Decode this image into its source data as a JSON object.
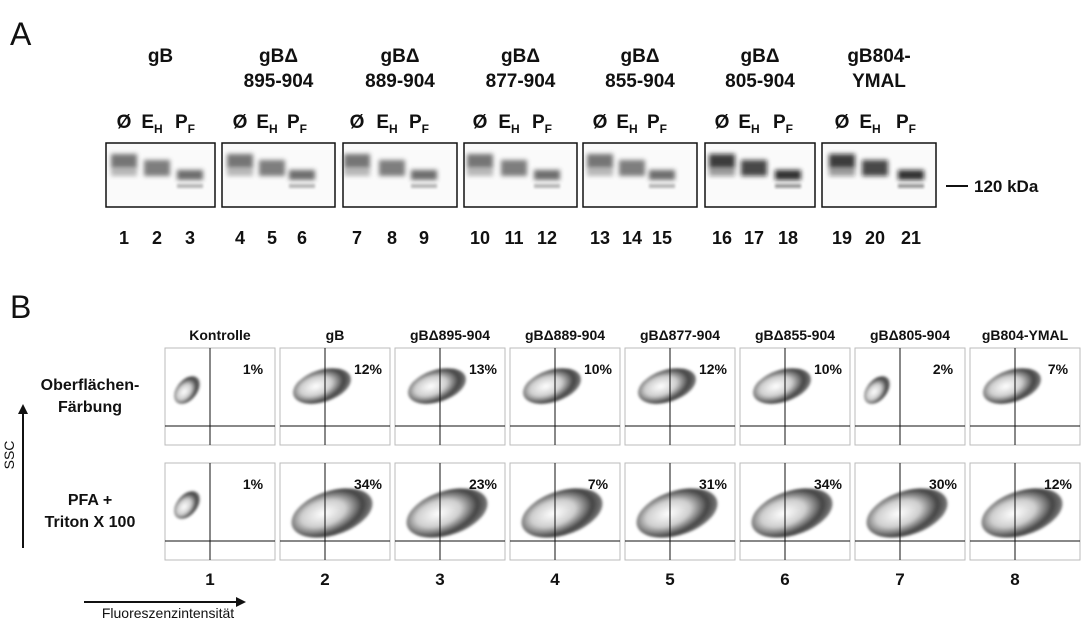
{
  "panel_a": {
    "label": "A",
    "groups": [
      {
        "title": [
          "gB"
        ],
        "lanes": [
          {
            "main": "Ø"
          },
          {
            "main": "E",
            "sub": "H"
          },
          {
            "main": "P",
            "sub": "F"
          }
        ],
        "numbers": [
          1,
          2,
          3
        ]
      },
      {
        "title": [
          "gBΔ",
          "895-904"
        ],
        "lanes": [
          {
            "main": "Ø"
          },
          {
            "main": "E",
            "sub": "H"
          },
          {
            "main": "P",
            "sub": "F"
          }
        ],
        "numbers": [
          4,
          5,
          6
        ]
      },
      {
        "title": [
          "gBΔ",
          "889-904"
        ],
        "lanes": [
          {
            "main": "Ø"
          },
          {
            "main": "E",
            "sub": "H"
          },
          {
            "main": "P",
            "sub": "F"
          }
        ],
        "numbers": [
          7,
          8,
          9
        ]
      },
      {
        "title": [
          "gBΔ",
          "877-904"
        ],
        "lanes": [
          {
            "main": "Ø"
          },
          {
            "main": "E",
            "sub": "H"
          },
          {
            "main": "P",
            "sub": "F"
          }
        ],
        "numbers": [
          10,
          11,
          12
        ]
      },
      {
        "title": [
          "gBΔ",
          "855-904"
        ],
        "lanes": [
          {
            "main": "Ø"
          },
          {
            "main": "E",
            "sub": "H"
          },
          {
            "main": "P",
            "sub": "F"
          }
        ],
        "numbers": [
          13,
          14,
          15
        ]
      },
      {
        "title": [
          "gBΔ",
          "805-904"
        ],
        "lanes": [
          {
            "main": "Ø"
          },
          {
            "main": "E",
            "sub": "H"
          },
          {
            "main": "P",
            "sub": "F"
          }
        ],
        "numbers": [
          16,
          17,
          18
        ]
      },
      {
        "title": [
          "gB804-",
          "YMAL"
        ],
        "lanes": [
          {
            "main": "Ø"
          },
          {
            "main": "E",
            "sub": "H"
          },
          {
            "main": "P",
            "sub": "F"
          }
        ],
        "numbers": [
          19,
          20,
          21
        ]
      }
    ],
    "marker": "120 kDa"
  },
  "panel_b": {
    "label": "B",
    "rows": [
      {
        "label": [
          "Oberflächen-",
          "Färbung"
        ]
      },
      {
        "label": [
          "PFA +",
          "Triton X 100"
        ]
      }
    ],
    "columns": [
      {
        "header": "Kontrolle",
        "number": 1,
        "percent": [
          "1%",
          "1%"
        ]
      },
      {
        "header": "gB",
        "number": 2,
        "percent": [
          "12%",
          "34%"
        ]
      },
      {
        "header": "gBΔ895-904",
        "number": 3,
        "percent": [
          "13%",
          "23%"
        ]
      },
      {
        "header": "gBΔ889-904",
        "number": 4,
        "percent": [
          "10%",
          "7%"
        ]
      },
      {
        "header": "gBΔ877-904",
        "number": 5,
        "percent": [
          "12%",
          "31%"
        ]
      },
      {
        "header": "gBΔ855-904",
        "number": 6,
        "percent": [
          "10%",
          "34%"
        ]
      },
      {
        "header": "gBΔ805-904",
        "number": 7,
        "percent": [
          "2%",
          "30%"
        ]
      },
      {
        "header": "gB804-YMAL",
        "number": 8,
        "percent": [
          "7%",
          "12%"
        ]
      }
    ],
    "y_axis": "SSC",
    "x_axis": "Fluoreszenzintensität"
  }
}
